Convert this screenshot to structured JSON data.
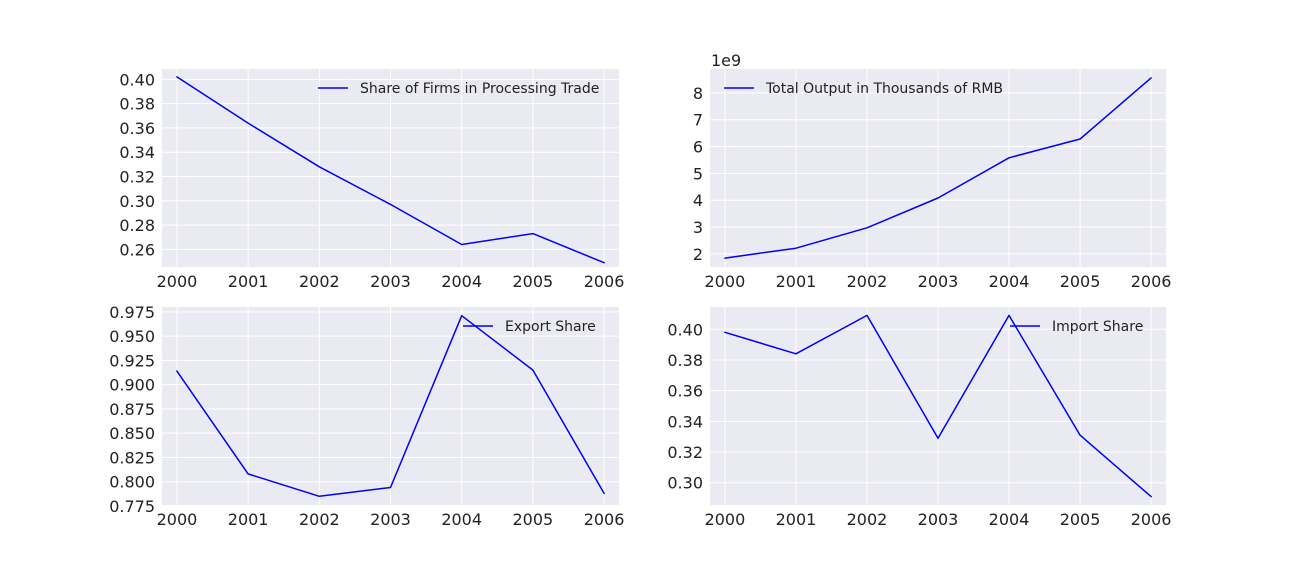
{
  "figure": {
    "background": "#ffffff",
    "panel_color": "#eaeaf2",
    "grid_color": "#ffffff",
    "line_color": "#0000ff"
  },
  "chart_data": [
    {
      "type": "line",
      "x": [
        2000,
        2001,
        2002,
        2003,
        2004,
        2005,
        2006
      ],
      "series": [
        {
          "name": "Share of Firms in Processing Trade",
          "values": [
            0.402,
            0.364,
            0.328,
            0.297,
            0.264,
            0.273,
            0.249
          ]
        }
      ],
      "xlim": [
        1999.79,
        2006.21
      ],
      "ylim": [
        0.2455,
        0.4085
      ],
      "yticks": [
        0.26,
        0.28,
        0.3,
        0.32,
        0.34,
        0.36,
        0.38,
        0.4
      ],
      "ytick_labels": [
        "0.26",
        "0.28",
        "0.30",
        "0.32",
        "0.34",
        "0.36",
        "0.38",
        "0.40"
      ],
      "xticks": [
        2000,
        2001,
        2002,
        2003,
        2004,
        2005,
        2006
      ],
      "xtick_labels": [
        "2000",
        "2001",
        "2002",
        "2003",
        "2004",
        "2005",
        "2006"
      ],
      "offset_label": "",
      "grid": true,
      "legend": "upper right",
      "title": "",
      "xlabel": "",
      "ylabel": ""
    },
    {
      "type": "line",
      "x": [
        2000,
        2001,
        2002,
        2003,
        2004,
        2005,
        2006
      ],
      "series": [
        {
          "name": "Total Output in Thousands of RMB",
          "values": [
            1840000000.0,
            2210000000.0,
            2970000000.0,
            4080000000.0,
            5580000000.0,
            6280000000.0,
            8560000000.0
          ]
        }
      ],
      "xlim": [
        1999.79,
        2006.21
      ],
      "ylim": [
        1510000000.0,
        8890000000.0
      ],
      "yticks": [
        2000000000.0,
        3000000000.0,
        4000000000.0,
        5000000000.0,
        6000000000.0,
        7000000000.0,
        8000000000.0
      ],
      "ytick_labels": [
        "2",
        "3",
        "4",
        "5",
        "6",
        "7",
        "8"
      ],
      "xticks": [
        2000,
        2001,
        2002,
        2003,
        2004,
        2005,
        2006
      ],
      "xtick_labels": [
        "2000",
        "2001",
        "2002",
        "2003",
        "2004",
        "2005",
        "2006"
      ],
      "offset_label": "1e9",
      "grid": true,
      "legend": "upper left",
      "title": "",
      "xlabel": "",
      "ylabel": ""
    },
    {
      "type": "line",
      "x": [
        2000,
        2001,
        2002,
        2003,
        2004,
        2005,
        2006
      ],
      "series": [
        {
          "name": "Export Share",
          "values": [
            0.914,
            0.808,
            0.785,
            0.794,
            0.971,
            0.915,
            0.788
          ]
        }
      ],
      "xlim": [
        1999.79,
        2006.21
      ],
      "ylim": [
        0.776,
        0.98
      ],
      "yticks": [
        0.775,
        0.8,
        0.825,
        0.85,
        0.875,
        0.9,
        0.925,
        0.95,
        0.975
      ],
      "ytick_labels": [
        "0.775",
        "0.800",
        "0.825",
        "0.850",
        "0.875",
        "0.900",
        "0.925",
        "0.950",
        "0.975"
      ],
      "xticks": [
        2000,
        2001,
        2002,
        2003,
        2004,
        2005,
        2006
      ],
      "xtick_labels": [
        "2000",
        "2001",
        "2002",
        "2003",
        "2004",
        "2005",
        "2006"
      ],
      "offset_label": "",
      "grid": true,
      "legend": "upper right",
      "title": "",
      "xlabel": "",
      "ylabel": ""
    },
    {
      "type": "line",
      "x": [
        2000,
        2001,
        2002,
        2003,
        2004,
        2005,
        2006
      ],
      "series": [
        {
          "name": "Import Share",
          "values": [
            0.398,
            0.384,
            0.409,
            0.329,
            0.409,
            0.331,
            0.291
          ]
        }
      ],
      "xlim": [
        1999.79,
        2006.21
      ],
      "ylim": [
        0.2855,
        0.4145
      ],
      "yticks": [
        0.3,
        0.32,
        0.34,
        0.36,
        0.38,
        0.4
      ],
      "ytick_labels": [
        "0.30",
        "0.32",
        "0.34",
        "0.36",
        "0.38",
        "0.40"
      ],
      "xticks": [
        2000,
        2001,
        2002,
        2003,
        2004,
        2005,
        2006
      ],
      "xtick_labels": [
        "2000",
        "2001",
        "2002",
        "2003",
        "2004",
        "2005",
        "2006"
      ],
      "offset_label": "",
      "grid": true,
      "legend": "upper right",
      "title": "",
      "xlabel": "",
      "ylabel": ""
    }
  ]
}
